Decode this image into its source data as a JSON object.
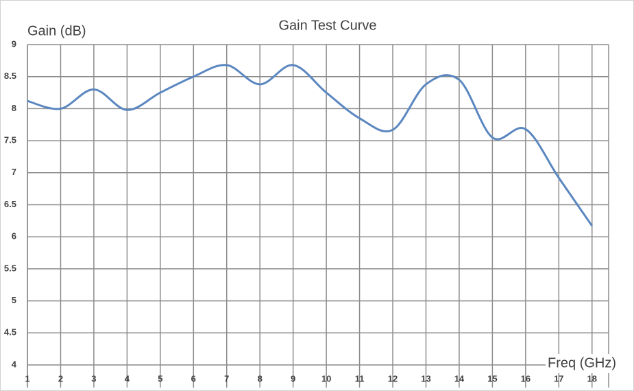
{
  "chart_data": {
    "type": "line",
    "title": "Gain Test Curve",
    "y_label": "Gain (dB)",
    "x_label": "Freq (GHz)",
    "x": [
      1,
      2,
      3,
      4,
      5,
      6,
      7,
      8,
      9,
      10,
      11,
      12,
      13,
      14,
      15,
      16,
      17,
      18
    ],
    "series": [
      {
        "name": "Gain",
        "color": "#5b87c0",
        "values": [
          8.12,
          8.0,
          8.3,
          7.98,
          8.25,
          8.5,
          8.68,
          8.38,
          8.68,
          8.25,
          7.85,
          7.67,
          8.38,
          8.45,
          7.55,
          7.68,
          6.92,
          6.17
        ]
      }
    ],
    "xlim": [
      1,
      18.5
    ],
    "xticks": [
      1,
      2,
      3,
      4,
      5,
      6,
      7,
      8,
      9,
      10,
      11,
      12,
      13,
      14,
      15,
      16,
      17,
      18
    ],
    "ylim": [
      4,
      9
    ],
    "yticks": [
      4,
      4.5,
      5,
      5.5,
      6,
      6.5,
      7,
      7.5,
      8,
      8.5,
      9
    ],
    "grid": true,
    "smooth": true
  }
}
